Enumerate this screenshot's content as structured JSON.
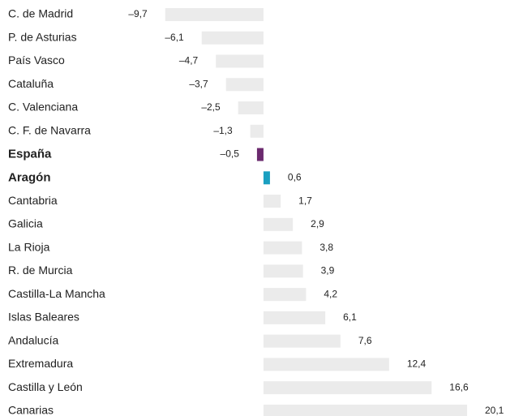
{
  "chart_data": {
    "type": "bar",
    "orientation": "horizontal",
    "categories": [
      "C. de Madrid",
      "P. de Asturias",
      "País Vasco",
      "Cataluña",
      "C. Valenciana",
      "C. F. de Navarra",
      "España",
      "Aragón",
      "Cantabria",
      "Galicia",
      "La Rioja",
      "R. de Murcia",
      "Castilla-La Mancha",
      "Islas Baleares",
      "Andalucía",
      "Extremadura",
      "Castilla y León",
      "Canarias"
    ],
    "values": [
      -9.7,
      -6.1,
      -4.7,
      -3.7,
      -2.5,
      -1.3,
      -0.5,
      0.6,
      1.7,
      2.9,
      3.8,
      3.9,
      4.2,
      6.1,
      7.6,
      12.4,
      16.6,
      20.1
    ],
    "value_labels": [
      "–9,7",
      "–6,1",
      "–4,7",
      "–3,7",
      "–2,5",
      "–1,3",
      "–0,5",
      "0,6",
      "1,7",
      "2,9",
      "3,8",
      "3,9",
      "4,2",
      "6,1",
      "7,6",
      "12,4",
      "16,6",
      "20,1"
    ],
    "color": "#ebebeb",
    "colors": [
      "#ebebeb",
      "#ebebeb",
      "#ebebeb",
      "#ebebeb",
      "#ebebeb",
      "#ebebeb",
      "#6b2a6e",
      "#1a9fc0",
      "#ebebeb",
      "#ebebeb",
      "#ebebeb",
      "#ebebeb",
      "#ebebeb",
      "#ebebeb",
      "#ebebeb",
      "#ebebeb",
      "#ebebeb",
      "#ebebeb"
    ],
    "xlim": [
      -10,
      20.5
    ]
  }
}
